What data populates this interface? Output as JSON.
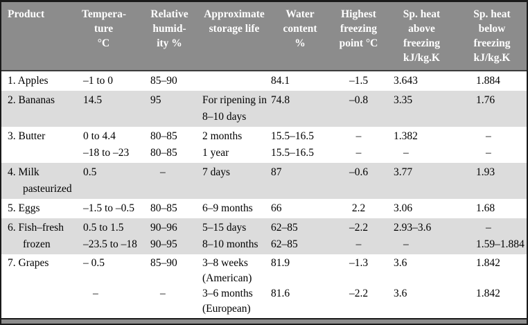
{
  "colors": {
    "header_bg": "#8c8c8c",
    "header_text": "#ffffff",
    "stripe_bg": "#dcdcdc",
    "row_bg": "#ffffff",
    "border": "#1a1a1a",
    "body_text": "#000000"
  },
  "table": {
    "columns": [
      {
        "id": "product",
        "header_lines": [
          "Product"
        ]
      },
      {
        "id": "temperature",
        "header_lines": [
          "Tempera-",
          "ture",
          "°C"
        ]
      },
      {
        "id": "humidity",
        "header_lines": [
          "Relative",
          "humid-",
          "ity %"
        ]
      },
      {
        "id": "storage-life",
        "header_lines": [
          "Approximate",
          "storage life"
        ]
      },
      {
        "id": "water-content",
        "header_lines": [
          "Water",
          "content",
          "%"
        ]
      },
      {
        "id": "freezing-point",
        "header_lines": [
          "Highest",
          "freezing",
          "point °C"
        ]
      },
      {
        "id": "sp-heat-above",
        "header_lines": [
          "Sp. heat",
          "above",
          "freezing",
          "kJ/kg.K"
        ]
      },
      {
        "id": "sp-heat-below",
        "header_lines": [
          "Sp. heat",
          "below",
          "freezing",
          "kJ/kg.K"
        ]
      }
    ],
    "rows": [
      {
        "shaded": false,
        "lines": 1,
        "cells": [
          [
            "1. Apples"
          ],
          [
            "–1 to 0"
          ],
          [
            "85–90"
          ],
          [
            ""
          ],
          [
            "84.1"
          ],
          [
            "–1.5"
          ],
          [
            "3.643"
          ],
          [
            "1.884"
          ]
        ]
      },
      {
        "shaded": true,
        "lines": 2,
        "cells": [
          [
            "2. Bananas"
          ],
          [
            "14.5"
          ],
          [
            "95"
          ],
          [
            "For ripening in",
            "8–10 days"
          ],
          [
            "74.8"
          ],
          [
            "–0.8"
          ],
          [
            "3.35"
          ],
          [
            "1.76"
          ]
        ]
      },
      {
        "shaded": false,
        "lines": 2,
        "cells": [
          [
            "3. Butter"
          ],
          [
            "0 to 4.4",
            "–18 to –23"
          ],
          [
            "80–85",
            "80–85"
          ],
          [
            "2 months",
            "1 year"
          ],
          [
            "15.5–16.5",
            "15.5–16.5"
          ],
          [
            "–",
            "–"
          ],
          [
            "1.382",
            "–"
          ],
          [
            "–",
            "–"
          ]
        ]
      },
      {
        "shaded": true,
        "lines": 2,
        "cells": [
          [
            "4. Milk",
            "pasteurized"
          ],
          [
            "0.5"
          ],
          [
            "–"
          ],
          [
            "7 days"
          ],
          [
            "87"
          ],
          [
            "–0.6"
          ],
          [
            "3.77"
          ],
          [
            "1.93"
          ]
        ]
      },
      {
        "shaded": false,
        "lines": 1,
        "cells": [
          [
            "5. Eggs"
          ],
          [
            "–1.5 to –0.5"
          ],
          [
            "80–85"
          ],
          [
            "6–9 months"
          ],
          [
            "66"
          ],
          [
            "2.2"
          ],
          [
            "3.06"
          ],
          [
            "1.68"
          ]
        ]
      },
      {
        "shaded": true,
        "lines": 2,
        "cells": [
          [
            "6. Fish–fresh",
            "frozen"
          ],
          [
            "0.5 to 1.5",
            "–23.5 to –18"
          ],
          [
            "90–96",
            "90–95"
          ],
          [
            "5–15 days",
            "8–10 months"
          ],
          [
            "62–85",
            "62–85"
          ],
          [
            "–2.2",
            "–"
          ],
          [
            "2.93–3.6",
            "–"
          ],
          [
            "–",
            "1.59–1.884"
          ]
        ]
      },
      {
        "shaded": false,
        "lines": 4,
        "cells": [
          [
            "7. Grapes"
          ],
          [
            "– 0.5",
            "",
            "–",
            ""
          ],
          [
            "85–90",
            "",
            "–",
            ""
          ],
          [
            "3–8 weeks",
            "(American)",
            "3–6 months",
            "(European)"
          ],
          [
            "81.9",
            "",
            "81.6",
            ""
          ],
          [
            "–1.3",
            "",
            "–2.2",
            ""
          ],
          [
            "3.6",
            "",
            "3.6",
            ""
          ],
          [
            "1.842",
            "",
            "1.842",
            ""
          ]
        ]
      }
    ]
  }
}
